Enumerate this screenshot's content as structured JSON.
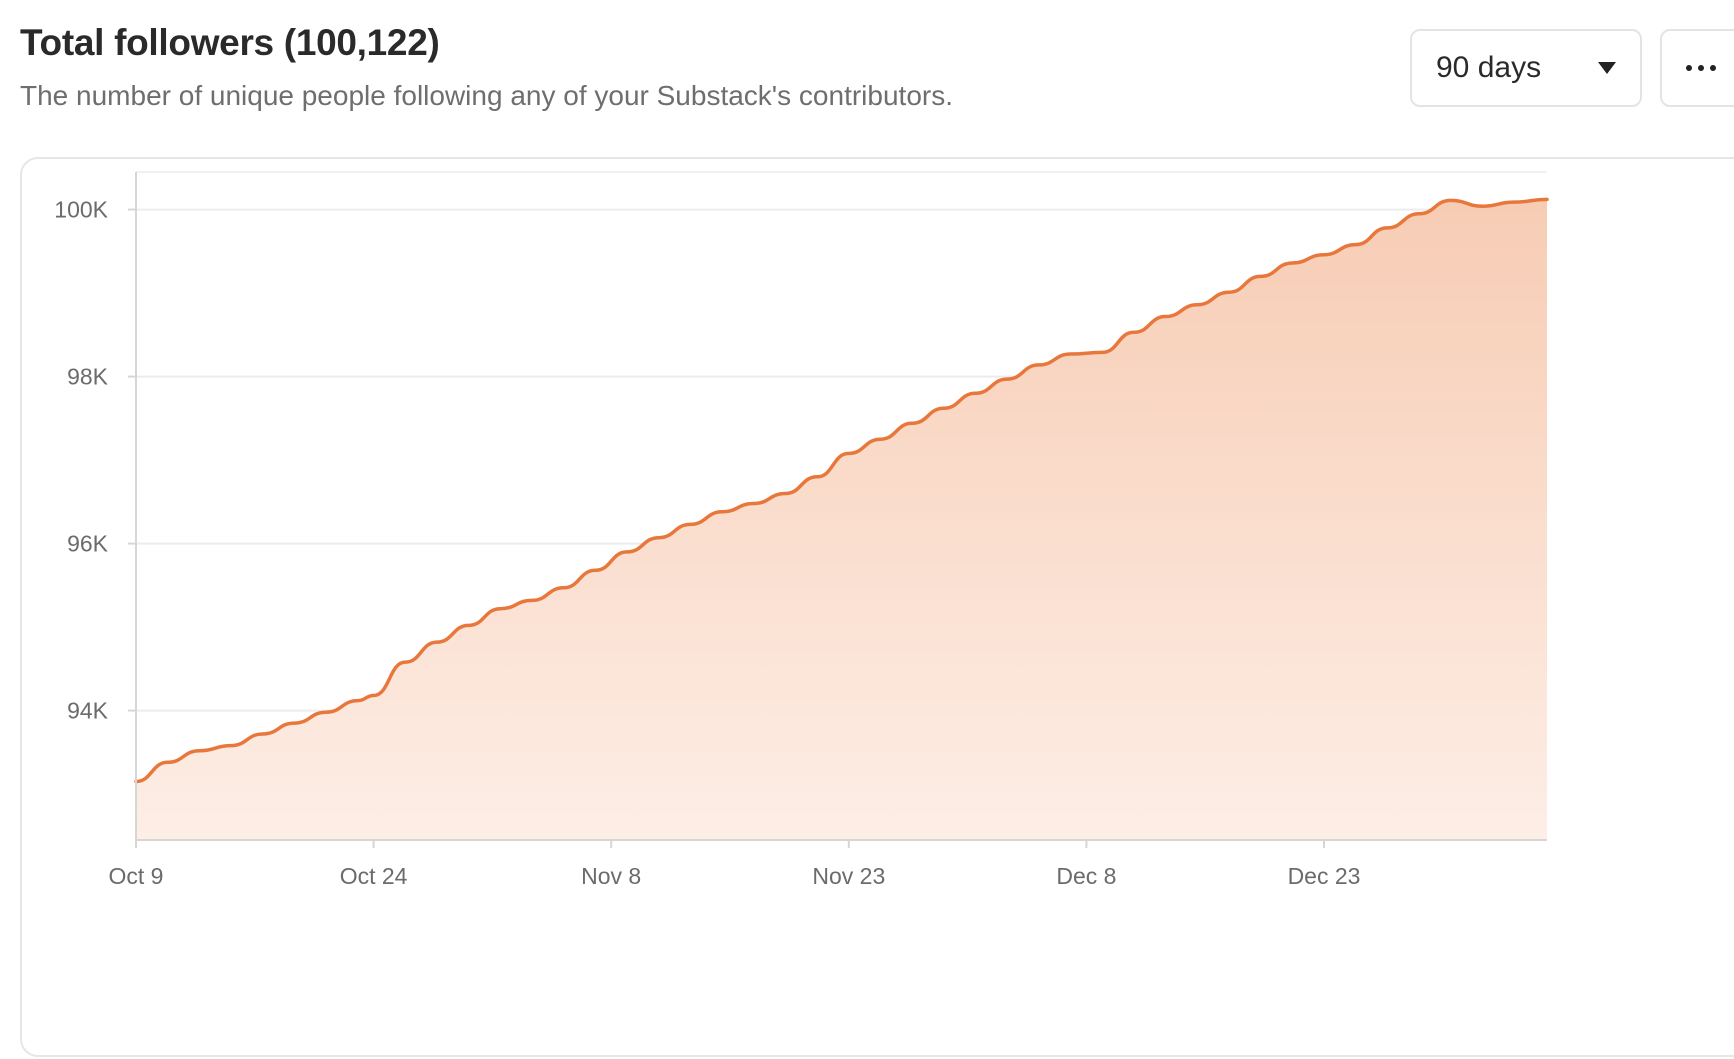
{
  "header": {
    "title": "Total followers (100,122)",
    "subtitle": "The number of unique people following any of your Substack's contributors."
  },
  "controls": {
    "range_label": "90 days",
    "range_icon": "caret-down-icon",
    "more_icon": "more-horizontal-icon"
  },
  "colors": {
    "line": "#e8773c",
    "fill_top": "#f7ccb4",
    "fill_bottom": "#fdeee6",
    "grid": "#ececec",
    "axis": "#d6d6d6"
  },
  "chart_data": {
    "type": "area",
    "title": "",
    "xlabel": "",
    "ylabel": "",
    "ylim": [
      92450,
      100450
    ],
    "x_ticks": [
      "Oct 9",
      "Oct 24",
      "Nov 8",
      "Nov 23",
      "Dec 8",
      "Dec 23"
    ],
    "y_ticks": [
      {
        "value": 94000,
        "label": "94K"
      },
      {
        "value": 96000,
        "label": "96K"
      },
      {
        "value": 98000,
        "label": "98K"
      },
      {
        "value": 100000,
        "label": "100K"
      }
    ],
    "grid": true,
    "series": [
      {
        "x": [
          "Oct 9",
          "Oct 11",
          "Oct 13",
          "Oct 15",
          "Oct 17",
          "Oct 19",
          "Oct 21",
          "Oct 23",
          "Oct 24",
          "Oct 26",
          "Oct 28",
          "Oct 30",
          "Nov 1",
          "Nov 3",
          "Nov 5",
          "Nov 7",
          "Nov 9",
          "Nov 11",
          "Nov 13",
          "Nov 15",
          "Nov 17",
          "Nov 19",
          "Nov 21",
          "Nov 23",
          "Nov 25",
          "Nov 27",
          "Nov 29",
          "Dec 1",
          "Dec 3",
          "Dec 5",
          "Dec 7",
          "Dec 9",
          "Dec 11",
          "Dec 13",
          "Dec 15",
          "Dec 17",
          "Dec 19",
          "Dec 21",
          "Dec 23",
          "Dec 25",
          "Dec 27",
          "Dec 29",
          "Dec 31",
          "Jan 2",
          "Jan 4",
          "Jan 6"
        ],
        "values": [
          93150,
          93380,
          93520,
          93580,
          93720,
          93850,
          93980,
          94120,
          94180,
          94580,
          94820,
          95020,
          95220,
          95320,
          95470,
          95680,
          95900,
          96070,
          96230,
          96380,
          96480,
          96600,
          96800,
          97080,
          97250,
          97440,
          97620,
          97800,
          97970,
          98140,
          98270,
          98290,
          98530,
          98720,
          98860,
          99010,
          99200,
          99360,
          99460,
          99580,
          99780,
          99950,
          100110,
          100040,
          100090,
          100122
        ]
      }
    ]
  }
}
